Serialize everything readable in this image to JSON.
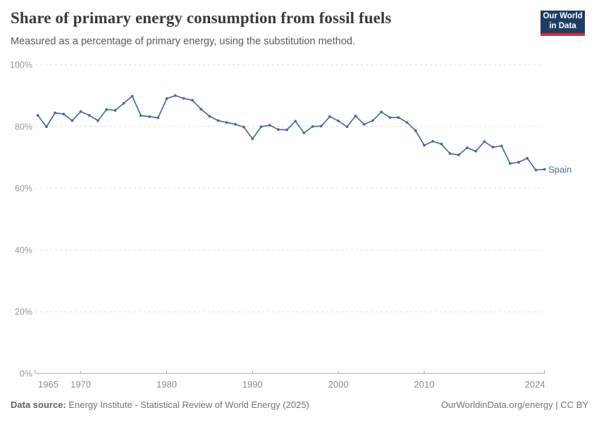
{
  "header": {
    "title": "Share of primary energy consumption from fossil fuels",
    "subtitle": "Measured as a percentage of primary energy, using the substitution method."
  },
  "logo": {
    "line1": "Our World",
    "line2": "in Data",
    "bg_color": "#1d3d63",
    "bar_color": "#c2333c"
  },
  "chart_data": {
    "type": "line",
    "title": "Share of primary energy consumption from fossil fuels",
    "subtitle": "Measured as a percentage of primary energy, using the substitution method.",
    "unit": "%",
    "entity_label": "Spain",
    "x_axis": {
      "range": [
        1965,
        2024
      ],
      "tick_labels": [
        "1965",
        "1970",
        "1980",
        "1990",
        "2000",
        "2010",
        "2024"
      ],
      "tick_years": [
        1965,
        1970,
        1980,
        1990,
        2000,
        2010,
        2024
      ],
      "inner_tick_years": [
        1970,
        1980,
        1990,
        2000,
        2010
      ]
    },
    "y_axis": {
      "range": [
        0,
        100
      ],
      "tick_values": [
        0,
        20,
        40,
        60,
        80,
        100
      ],
      "tick_labels": [
        "0%",
        "20%",
        "40%",
        "60%",
        "80%",
        "100%"
      ],
      "grid": "dashed horizontal"
    },
    "legend_position": "end-of-line label",
    "series": [
      {
        "name": "Spain",
        "color": "#4C6A9C",
        "points": [
          [
            1965,
            83.6
          ],
          [
            1966,
            79.9
          ],
          [
            1967,
            84.4
          ],
          [
            1968,
            84.0
          ],
          [
            1969,
            81.9
          ],
          [
            1970,
            84.8
          ],
          [
            1971,
            83.6
          ],
          [
            1972,
            81.9
          ],
          [
            1973,
            85.5
          ],
          [
            1974,
            85.2
          ],
          [
            1975,
            87.5
          ],
          [
            1976,
            89.8
          ],
          [
            1977,
            83.5
          ],
          [
            1978,
            83.2
          ],
          [
            1979,
            82.8
          ],
          [
            1980,
            89.0
          ],
          [
            1981,
            90.0
          ],
          [
            1982,
            89.1
          ],
          [
            1983,
            88.5
          ],
          [
            1984,
            85.6
          ],
          [
            1985,
            83.3
          ],
          [
            1986,
            81.9
          ],
          [
            1987,
            81.3
          ],
          [
            1988,
            80.7
          ],
          [
            1989,
            79.8
          ],
          [
            1990,
            76.0
          ],
          [
            1991,
            79.9
          ],
          [
            1992,
            80.4
          ],
          [
            1993,
            79.0
          ],
          [
            1994,
            78.9
          ],
          [
            1995,
            81.7
          ],
          [
            1996,
            77.9
          ],
          [
            1997,
            80.0
          ],
          [
            1998,
            80.1
          ],
          [
            1999,
            83.2
          ],
          [
            2000,
            81.8
          ],
          [
            2001,
            79.9
          ],
          [
            2002,
            83.4
          ],
          [
            2003,
            80.7
          ],
          [
            2004,
            81.9
          ],
          [
            2005,
            84.7
          ],
          [
            2006,
            82.9
          ],
          [
            2007,
            82.9
          ],
          [
            2008,
            81.3
          ],
          [
            2009,
            78.6
          ],
          [
            2010,
            73.9
          ],
          [
            2011,
            75.2
          ],
          [
            2012,
            74.3
          ],
          [
            2013,
            71.2
          ],
          [
            2014,
            70.8
          ],
          [
            2015,
            73.1
          ],
          [
            2016,
            72.0
          ],
          [
            2017,
            75.1
          ],
          [
            2018,
            73.3
          ],
          [
            2019,
            73.7
          ],
          [
            2020,
            68.0
          ],
          [
            2021,
            68.4
          ],
          [
            2022,
            69.7
          ],
          [
            2023,
            65.9
          ],
          [
            2024,
            66.1
          ]
        ]
      }
    ]
  },
  "colors": {
    "line": "#4C6A9C",
    "grid": "#dadada",
    "axis": "#a8a8a8",
    "axis_tick_text": "#999999"
  },
  "footer": {
    "datasource_label": "Data source:",
    "datasource_text": " Energy Institute - Statistical Review of World Energy (2025)",
    "credit": "OurWorldinData.org/energy | CC BY"
  }
}
